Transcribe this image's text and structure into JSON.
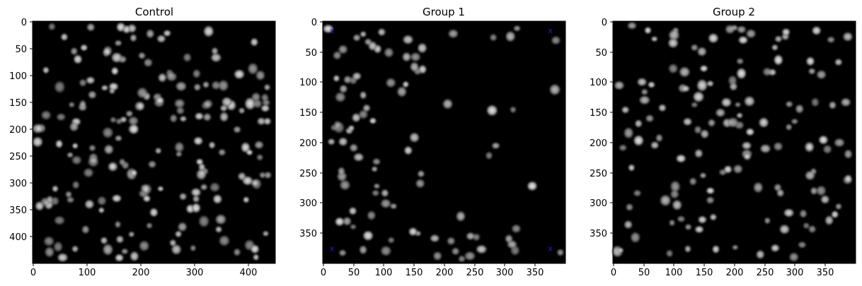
{
  "figure": {
    "panels": [
      {
        "title": "Control",
        "x_ticks": [
          "0",
          "100",
          "200",
          "300",
          "400"
        ],
        "y_ticks": [
          "0",
          "50",
          "100",
          "150",
          "200",
          "250",
          "300",
          "350",
          "400"
        ],
        "image_extent": [
          0,
          450,
          0,
          450
        ]
      },
      {
        "title": "Group 1",
        "x_ticks": [
          "0",
          "50",
          "100",
          "150",
          "200",
          "250",
          "300",
          "350"
        ],
        "y_ticks": [
          "0",
          "50",
          "100",
          "150",
          "200",
          "250",
          "300",
          "350"
        ],
        "image_extent": [
          0,
          400,
          0,
          400
        ],
        "markers": [
          {
            "x": 15,
            "y": 15,
            "symbol": "x"
          },
          {
            "x": 375,
            "y": 15,
            "symbol": "x"
          },
          {
            "x": 15,
            "y": 375,
            "symbol": "x"
          },
          {
            "x": 375,
            "y": 375,
            "symbol": "x"
          }
        ],
        "marker_color": "#1f1fd0"
      },
      {
        "title": "Group 2",
        "x_ticks": [
          "0",
          "50",
          "100",
          "150",
          "200",
          "250",
          "300",
          "350"
        ],
        "y_ticks": [
          "0",
          "50",
          "100",
          "150",
          "200",
          "250",
          "300",
          "350"
        ],
        "image_extent": [
          0,
          400,
          0,
          400
        ]
      }
    ],
    "colors": {
      "background": "#000000",
      "nuclei": "#e6e6e6"
    }
  }
}
